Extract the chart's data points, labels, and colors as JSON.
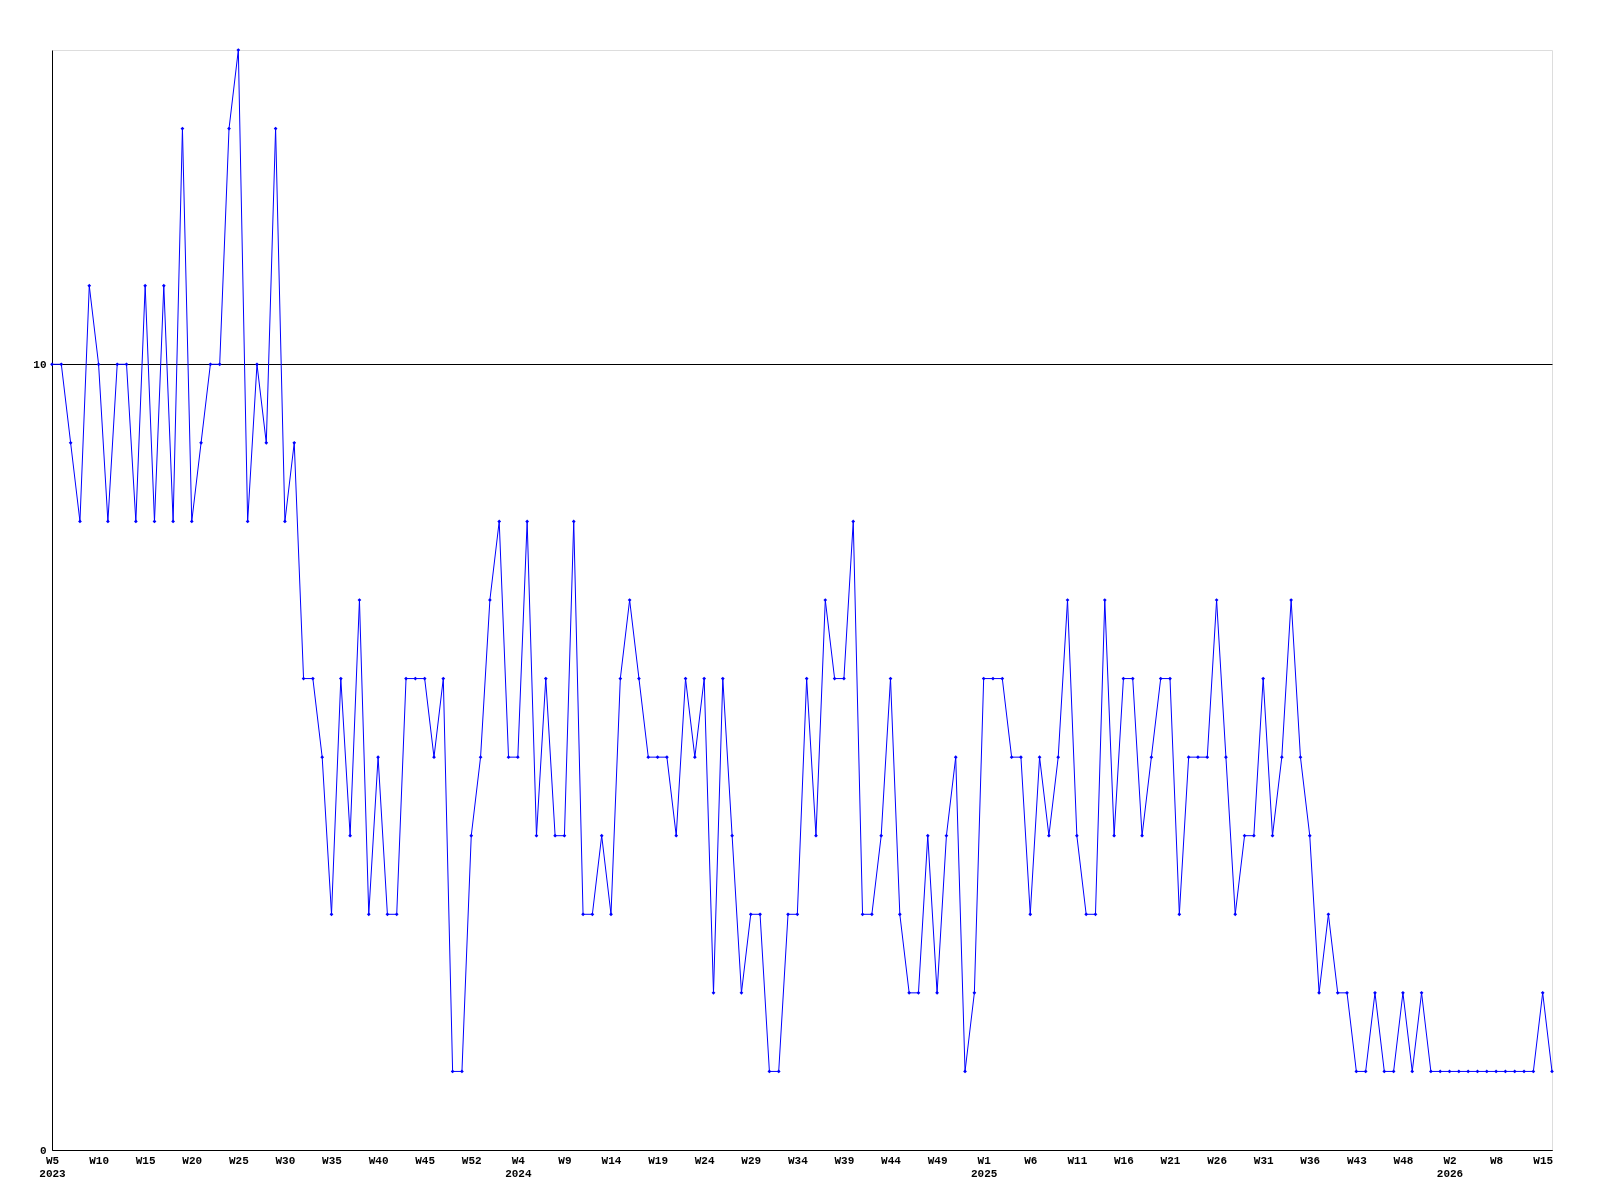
{
  "chart_data": {
    "type": "line",
    "categories": [
      "W5\n2023",
      null,
      null,
      null,
      null,
      "W10",
      null,
      null,
      null,
      null,
      "W15",
      null,
      null,
      null,
      null,
      "W20",
      null,
      null,
      null,
      null,
      "W25",
      null,
      null,
      null,
      null,
      "W30",
      null,
      null,
      null,
      null,
      "W35",
      null,
      null,
      null,
      null,
      "W40",
      null,
      null,
      null,
      null,
      "W45",
      null,
      null,
      null,
      null,
      "W52",
      null,
      null,
      null,
      null,
      "W4\n2024",
      null,
      null,
      null,
      null,
      "W9",
      null,
      null,
      null,
      null,
      "W14",
      null,
      null,
      null,
      null,
      "W19",
      null,
      null,
      null,
      null,
      "W24",
      null,
      null,
      null,
      null,
      "W29",
      null,
      null,
      null,
      null,
      "W34",
      null,
      null,
      null,
      null,
      "W39",
      null,
      null,
      null,
      null,
      "W44",
      null,
      null,
      null,
      null,
      "W49",
      null,
      null,
      null,
      null,
      "W1\n2025",
      null,
      null,
      null,
      null,
      "W6",
      null,
      null,
      null,
      null,
      "W11",
      null,
      null,
      null,
      null,
      "W16",
      null,
      null,
      null,
      null,
      "W21",
      null,
      null,
      null,
      null,
      "W26",
      null,
      null,
      null,
      null,
      "W31",
      null,
      null,
      null,
      null,
      "W36",
      null,
      null,
      null,
      null,
      "W43",
      null,
      null,
      null,
      null,
      "W48",
      null,
      null,
      null,
      null,
      "W2\n2026",
      null,
      null,
      null,
      null,
      "W8",
      null,
      null,
      null,
      null,
      "W15",
      null
    ],
    "series": [
      {
        "color": "#0000ff",
        "values": [
          10,
          10,
          9,
          8,
          11,
          10,
          8,
          10,
          10,
          8,
          11,
          8,
          11,
          8,
          13,
          8,
          9,
          10,
          10,
          13,
          14,
          8,
          10,
          9,
          13,
          8,
          9,
          6,
          6,
          5,
          3,
          6,
          4,
          7,
          3,
          5,
          3,
          3,
          6,
          6,
          6,
          5,
          6,
          1,
          1,
          4,
          5,
          7,
          8,
          5,
          5,
          8,
          4,
          6,
          4,
          4,
          8,
          3,
          3,
          4,
          3,
          6,
          7,
          6,
          5,
          5,
          5,
          4,
          6,
          5,
          6,
          2,
          6,
          4,
          2,
          3,
          3,
          1,
          1,
          3,
          3,
          6,
          4,
          7,
          6,
          6,
          8,
          3,
          3,
          4,
          6,
          3,
          2,
          2,
          4,
          2,
          4,
          5,
          1,
          2,
          6,
          6,
          6,
          5,
          5,
          3,
          5,
          4,
          5,
          7,
          4,
          3,
          3,
          7,
          4,
          6,
          6,
          4,
          5,
          6,
          6,
          3,
          5,
          5,
          5,
          7,
          5,
          3,
          4,
          4,
          6,
          4,
          5,
          7,
          5,
          4,
          2,
          3,
          2,
          2,
          1,
          1,
          2,
          1,
          1,
          2,
          1,
          2,
          1,
          1,
          1,
          1,
          1,
          1,
          1,
          1,
          1,
          1,
          1,
          1,
          2,
          1
        ]
      }
    ],
    "ylim": [
      0,
      14
    ],
    "yticks": [
      0,
      10
    ],
    "grid": "y",
    "marker": "diamond",
    "line_style": "solid"
  }
}
